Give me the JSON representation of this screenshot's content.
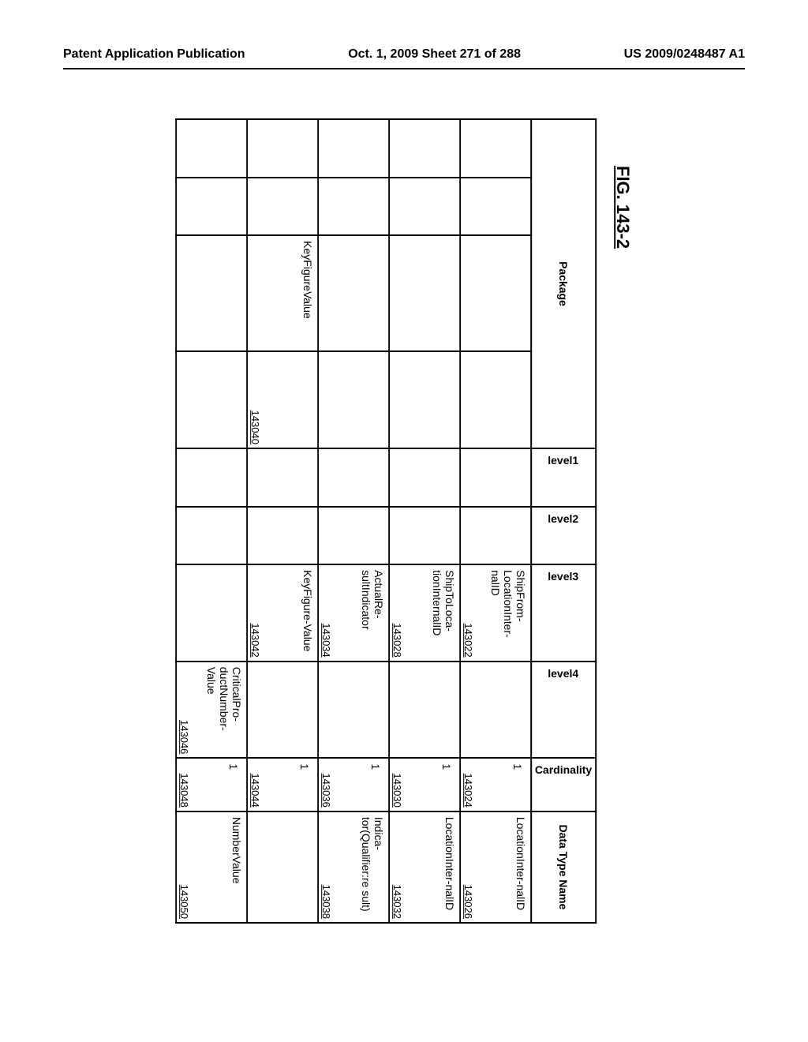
{
  "header": {
    "left": "Patent Application Publication",
    "center": "Oct. 1, 2009  Sheet 271 of 288",
    "right": "US 2009/0248487 A1"
  },
  "figure_label": "FIG. 143-2",
  "columns": {
    "package": "Package",
    "level1": "level1",
    "level2": "level2",
    "level3": "level3",
    "level4": "level4",
    "cardinality": "Cardinality",
    "datatype": "Data Type Name"
  },
  "rows": [
    {
      "package": "",
      "pkg_ref": "",
      "level1": "",
      "level2": "",
      "level3": "ShipFrom-LocationInter-nalID",
      "level3_ref": "143022",
      "level4": "",
      "level4_ref": "",
      "cardinality": "1",
      "card_ref": "143024",
      "datatype": "LocationInter-nalID",
      "dt_ref": "143026"
    },
    {
      "package": "",
      "pkg_ref": "",
      "level1": "",
      "level2": "",
      "level3": "ShipToLoca-tionInternalID",
      "level3_ref": "143028",
      "level4": "",
      "level4_ref": "",
      "cardinality": "1",
      "card_ref": "143030",
      "datatype": "LocationInter-nalID",
      "dt_ref": "143032"
    },
    {
      "package": "",
      "pkg_ref": "",
      "level1": "",
      "level2": "",
      "level3": "ActualRe-sultIndicator",
      "level3_ref": "143034",
      "level4": "",
      "level4_ref": "",
      "cardinality": "1",
      "card_ref": "143036",
      "datatype": "Indica-tor(Qualifier:re sult)",
      "dt_ref": "143038"
    },
    {
      "package": "KeyFigureValue",
      "pkg_ref": "143040",
      "level1": "",
      "level2": "",
      "level3": "KeyFigure-Value",
      "level3_ref": "143042",
      "level4": "",
      "level4_ref": "",
      "cardinality": "1",
      "card_ref": "143044",
      "datatype": "",
      "dt_ref": ""
    },
    {
      "package": "",
      "pkg_ref": "",
      "level1": "",
      "level2": "",
      "level3": "",
      "level3_ref": "",
      "level4": "CriticalPro-ductNumber-Value",
      "level4_ref": "143046",
      "cardinality": "1",
      "card_ref": "143048",
      "datatype": "NumberValue",
      "dt_ref": "143050"
    }
  ]
}
